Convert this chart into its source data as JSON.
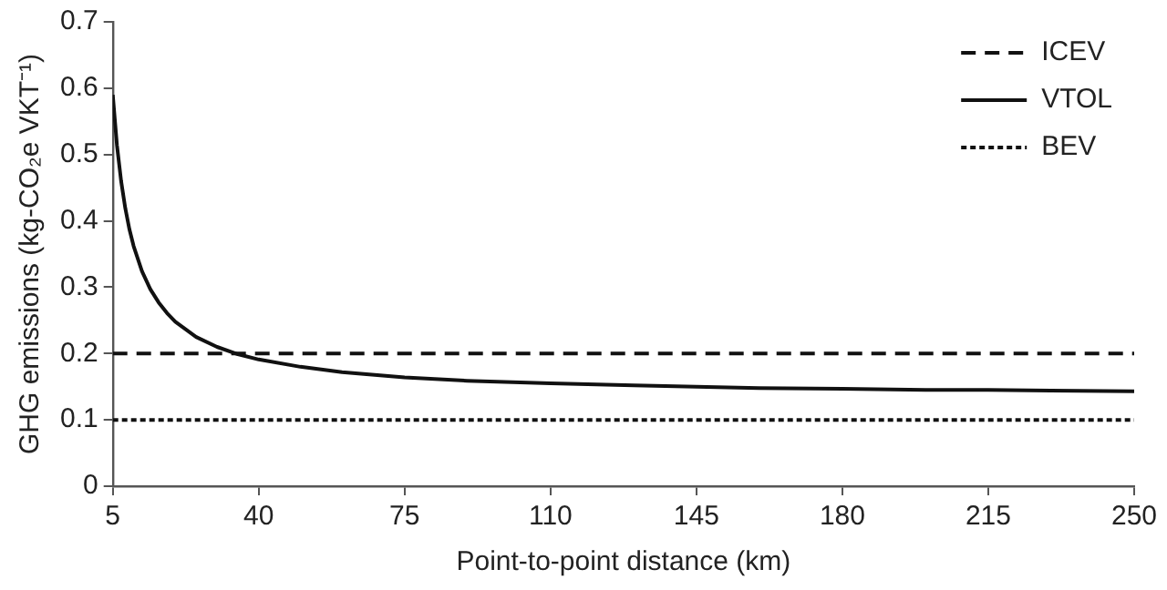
{
  "chart_data": {
    "type": "line",
    "xlabel": "Point-to-point distance (km)",
    "ylabel": "GHG emissions (kg-CO₂e VKT⁻¹)",
    "xlim": [
      5,
      250
    ],
    "xticks": [
      5,
      40,
      75,
      110,
      145,
      180,
      215,
      250
    ],
    "ylim": [
      0,
      0.7
    ],
    "yticks": [
      0,
      0.1,
      0.2,
      0.3,
      0.4,
      0.5,
      0.6,
      0.7
    ],
    "grid": false,
    "legend": "top right",
    "marker": "none",
    "series": [
      {
        "name": "ICEV",
        "color": "#111111",
        "line_style": "dashed",
        "x": [
          5,
          250
        ],
        "values": [
          0.2,
          0.2
        ]
      },
      {
        "name": "VTOL",
        "color": "#111111",
        "line_style": "solid",
        "x": [
          5,
          6,
          7,
          8,
          9,
          10,
          12,
          14,
          16,
          18,
          20,
          25,
          30,
          35,
          40,
          50,
          60,
          75,
          90,
          110,
          130,
          145,
          160,
          180,
          200,
          215,
          230,
          250
        ],
        "values": [
          0.59,
          0.514,
          0.46,
          0.419,
          0.387,
          0.362,
          0.324,
          0.297,
          0.277,
          0.261,
          0.248,
          0.225,
          0.21,
          0.199,
          0.191,
          0.18,
          0.172,
          0.164,
          0.159,
          0.155,
          0.152,
          0.15,
          0.148,
          0.147,
          0.145,
          0.145,
          0.144,
          0.143
        ]
      },
      {
        "name": "BEV",
        "color": "#111111",
        "line_style": "dotted",
        "x": [
          5,
          250
        ],
        "values": [
          0.1,
          0.1
        ]
      }
    ]
  }
}
